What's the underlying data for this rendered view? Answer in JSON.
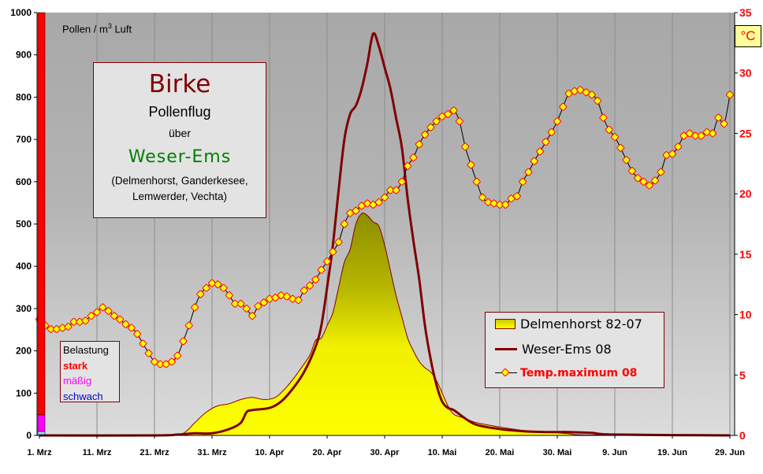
{
  "title_box": {
    "species": "Birke",
    "line1": "Pollenflug",
    "line2": "über",
    "region": "Weser-Ems",
    "places_line1": "(Delmenhorst, Ganderkesee,",
    "places_line2": "Lemwerder, Vechta)"
  },
  "left_axis_unit": {
    "prefix": "Pollen / m",
    "sup": "3",
    "suffix": " Luft"
  },
  "right_axis_unit": "°C",
  "level_box": {
    "title": "Belastung",
    "strong": "stark",
    "moderate": "mäßig",
    "weak": "schwach",
    "colors": {
      "strong": "#ff0000",
      "moderate": "#ff00ff",
      "weak": "#99ccff"
    }
  },
  "legend": {
    "series1": "Delmenhorst 82-07",
    "series2": "Weser-Ems 08",
    "series3": "Temp.maximum 08"
  },
  "colors": {
    "area_fill_top": "#9a9a00",
    "area_fill_bottom": "#ffff00",
    "area_edge": "#800000",
    "line": "#800000",
    "temp_marker_fill": "#ffff00",
    "temp_marker_edge": "#ff0000",
    "right_axis": "#ff0000"
  },
  "chart_data": {
    "type": "line",
    "title": "Birke Pollenflug über Weser-Ems",
    "xlabel": "",
    "ylabel": "Pollen / m³ Luft",
    "y2label": "°C",
    "ylim": [
      0,
      1000
    ],
    "y2lim": [
      0,
      35
    ],
    "yticks": [
      0,
      100,
      200,
      300,
      400,
      500,
      600,
      700,
      800,
      900,
      1000
    ],
    "y2ticks": [
      0,
      5,
      10,
      15,
      20,
      25,
      30,
      35
    ],
    "x_tick_labels": [
      "1. Mrz",
      "11. Mrz",
      "21. Mrz",
      "31. Mrz",
      "10. Apr",
      "20. Apr",
      "30. Apr",
      "10. Mai",
      "20. Mai",
      "30. Mai",
      "9. Jun",
      "19. Jun",
      "29. Jun"
    ],
    "x_tick_days": [
      0,
      10,
      20,
      30,
      40,
      50,
      60,
      70,
      80,
      90,
      100,
      110,
      120
    ],
    "grid": "vertical",
    "legend_position": "lower right",
    "series": [
      {
        "name": "Delmenhorst 82-07",
        "kind": "area",
        "axis": "left",
        "points": [
          [
            0,
            0
          ],
          [
            22,
            0
          ],
          [
            25,
            5
          ],
          [
            27,
            30
          ],
          [
            29,
            55
          ],
          [
            31,
            70
          ],
          [
            33,
            75
          ],
          [
            35,
            85
          ],
          [
            37,
            90
          ],
          [
            39,
            85
          ],
          [
            41,
            90
          ],
          [
            43,
            115
          ],
          [
            45,
            150
          ],
          [
            47,
            190
          ],
          [
            48,
            225
          ],
          [
            49,
            230
          ],
          [
            50,
            260
          ],
          [
            51,
            290
          ],
          [
            52,
            350
          ],
          [
            53,
            410
          ],
          [
            54,
            440
          ],
          [
            55,
            500
          ],
          [
            56,
            525
          ],
          [
            57,
            520
          ],
          [
            58,
            505
          ],
          [
            59,
            495
          ],
          [
            60,
            450
          ],
          [
            61,
            390
          ],
          [
            62,
            330
          ],
          [
            63,
            280
          ],
          [
            64,
            230
          ],
          [
            65,
            200
          ],
          [
            66,
            175
          ],
          [
            67,
            160
          ],
          [
            68,
            150
          ],
          [
            69,
            130
          ],
          [
            70,
            100
          ],
          [
            71,
            70
          ],
          [
            72,
            50
          ],
          [
            74,
            40
          ],
          [
            76,
            30
          ],
          [
            80,
            20
          ],
          [
            84,
            12
          ],
          [
            88,
            8
          ],
          [
            92,
            4
          ],
          [
            96,
            1
          ],
          [
            120,
            0
          ]
        ]
      },
      {
        "name": "Weser-Ems 08",
        "kind": "line",
        "axis": "left",
        "points": [
          [
            0,
            0
          ],
          [
            20,
            0
          ],
          [
            24,
            2
          ],
          [
            27,
            5
          ],
          [
            30,
            5
          ],
          [
            33,
            15
          ],
          [
            35,
            30
          ],
          [
            36,
            55
          ],
          [
            37,
            60
          ],
          [
            40,
            65
          ],
          [
            42,
            80
          ],
          [
            44,
            110
          ],
          [
            46,
            150
          ],
          [
            48,
            210
          ],
          [
            49,
            260
          ],
          [
            50,
            350
          ],
          [
            51,
            450
          ],
          [
            52,
            580
          ],
          [
            53,
            700
          ],
          [
            54,
            760
          ],
          [
            55,
            780
          ],
          [
            56,
            820
          ],
          [
            57,
            880
          ],
          [
            58,
            950
          ],
          [
            59,
            920
          ],
          [
            60,
            870
          ],
          [
            61,
            820
          ],
          [
            62,
            750
          ],
          [
            63,
            680
          ],
          [
            64,
            560
          ],
          [
            65,
            460
          ],
          [
            66,
            370
          ],
          [
            67,
            260
          ],
          [
            68,
            180
          ],
          [
            69,
            120
          ],
          [
            70,
            80
          ],
          [
            71,
            65
          ],
          [
            72,
            60
          ],
          [
            74,
            40
          ],
          [
            76,
            25
          ],
          [
            80,
            15
          ],
          [
            84,
            10
          ],
          [
            88,
            8
          ],
          [
            92,
            8
          ],
          [
            96,
            6
          ],
          [
            100,
            2
          ],
          [
            120,
            0
          ]
        ]
      },
      {
        "name": "Temp.maximum 08",
        "kind": "line_markers",
        "axis": "right",
        "values": [
          9.6,
          9.1,
          8.8,
          8.8,
          8.9,
          9.0,
          9.4,
          9.4,
          9.5,
          9.9,
          10.2,
          10.6,
          10.3,
          9.9,
          9.6,
          9.2,
          8.9,
          8.4,
          7.6,
          6.8,
          6.1,
          5.9,
          5.9,
          6.1,
          6.6,
          7.8,
          9.1,
          10.6,
          11.7,
          12.2,
          12.6,
          12.5,
          12.2,
          11.6,
          10.9,
          10.9,
          10.5,
          9.9,
          10.7,
          11.0,
          11.3,
          11.4,
          11.6,
          11.5,
          11.3,
          11.2,
          12.0,
          12.4,
          12.9,
          13.7,
          14.4,
          15.2,
          16.0,
          17.5,
          18.4,
          18.6,
          19.0,
          19.2,
          19.1,
          19.3,
          19.7,
          20.3,
          20.3,
          21.0,
          22.3,
          23.0,
          24.1,
          24.9,
          25.5,
          26.0,
          26.4,
          26.6,
          26.9,
          26.0,
          23.9,
          22.4,
          21.0,
          19.7,
          19.3,
          19.2,
          19.1,
          19.1,
          19.6,
          19.8,
          21.0,
          21.8,
          22.7,
          23.5,
          24.3,
          25.1,
          26.0,
          27.2,
          28.3,
          28.5,
          28.6,
          28.4,
          28.2,
          27.7,
          26.3,
          25.3,
          24.7,
          23.8,
          22.8,
          21.9,
          21.3,
          21.0,
          20.7,
          21.1,
          21.8,
          23.2,
          23.3,
          23.9,
          24.8,
          25.0,
          24.8,
          24.8,
          25.1,
          25.0,
          26.3,
          25.8,
          28.2
        ]
      }
    ]
  }
}
